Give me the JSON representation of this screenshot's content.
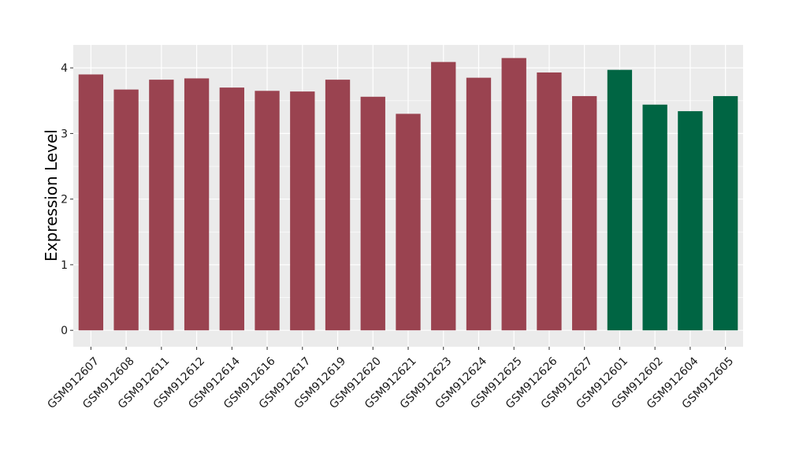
{
  "chart_data": {
    "type": "bar",
    "title": "",
    "xlabel": "",
    "ylabel": "Expression Level",
    "ylim": [
      -0.25,
      4.35
    ],
    "yticks": [
      0,
      1,
      2,
      3,
      4
    ],
    "grid": true,
    "legend": "none",
    "categories": [
      "GSM912607",
      "GSM912608",
      "GSM912611",
      "GSM912612",
      "GSM912614",
      "GSM912616",
      "GSM912617",
      "GSM912619",
      "GSM912620",
      "GSM912621",
      "GSM912623",
      "GSM912624",
      "GSM912625",
      "GSM912626",
      "GSM912627",
      "GSM912601",
      "GSM912602",
      "GSM912604",
      "GSM912605"
    ],
    "values": [
      3.9,
      3.67,
      3.82,
      3.84,
      3.7,
      3.65,
      3.64,
      3.82,
      3.56,
      3.3,
      4.09,
      3.85,
      4.15,
      3.93,
      3.57,
      3.97,
      3.44,
      3.34,
      3.57
    ],
    "groups": [
      "a",
      "a",
      "a",
      "a",
      "a",
      "a",
      "a",
      "a",
      "a",
      "a",
      "a",
      "a",
      "a",
      "a",
      "a",
      "b",
      "b",
      "b",
      "b"
    ],
    "colors": {
      "a": "#9a4350",
      "b": "#006543"
    },
    "panel_background": "#ebebeb",
    "grid_color": "#ffffff"
  }
}
